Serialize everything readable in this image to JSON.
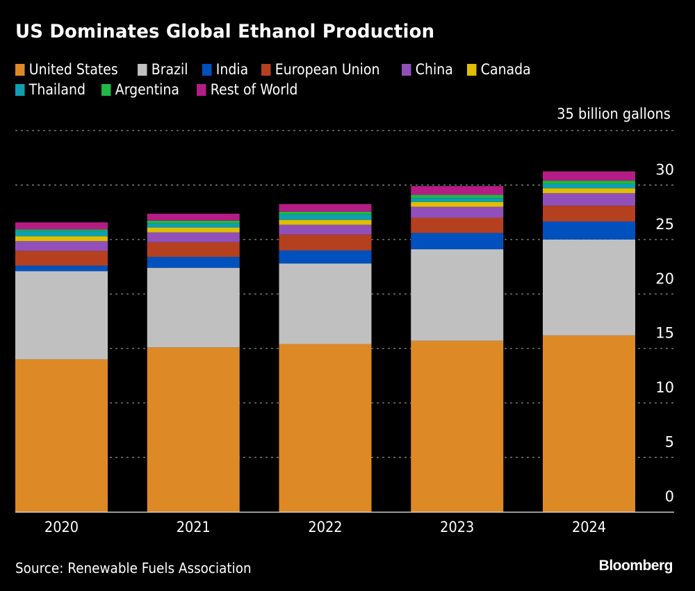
{
  "chart_data": {
    "type": "bar",
    "stacked": true,
    "title": "US Dominates Global Ethanol Production",
    "unit_label": "35 billion gallons",
    "xlabel": "",
    "ylabel": "billion gallons",
    "ylim": [
      0,
      35
    ],
    "yticks": [
      0,
      5,
      10,
      15,
      20,
      25,
      30
    ],
    "ytick_labels": [
      "0",
      "5",
      "10",
      "15",
      "20",
      "25",
      "30"
    ],
    "grid": true,
    "y_axis_side": "right",
    "legend_position": "top-left",
    "categories": [
      "2020",
      "2021",
      "2022",
      "2023",
      "2024"
    ],
    "series": [
      {
        "name": "United States",
        "color": "#dd8a26",
        "values": [
          14.0,
          15.1,
          15.4,
          15.7,
          16.2
        ]
      },
      {
        "name": "Brazil",
        "color": "#c0c0c0",
        "values": [
          8.1,
          7.3,
          7.4,
          8.4,
          8.8
        ]
      },
      {
        "name": "India",
        "color": "#0051bd",
        "values": [
          0.5,
          1.0,
          1.2,
          1.5,
          1.65
        ]
      },
      {
        "name": "European Union",
        "color": "#b5401f",
        "values": [
          1.35,
          1.35,
          1.45,
          1.4,
          1.45
        ]
      },
      {
        "name": "China",
        "color": "#9150b9",
        "values": [
          0.9,
          0.9,
          0.9,
          1.0,
          1.15
        ]
      },
      {
        "name": "Canada",
        "color": "#dfbf00",
        "values": [
          0.45,
          0.45,
          0.45,
          0.45,
          0.45
        ]
      },
      {
        "name": "Thailand",
        "color": "#0f9fb1",
        "values": [
          0.5,
          0.38,
          0.5,
          0.35,
          0.4
        ]
      },
      {
        "name": "Argentina",
        "color": "#1fb944",
        "values": [
          0.13,
          0.25,
          0.25,
          0.3,
          0.3
        ]
      },
      {
        "name": "Rest of World",
        "color": "#b51c86",
        "values": [
          0.64,
          0.64,
          0.7,
          0.8,
          0.85
        ]
      }
    ]
  },
  "legend": {
    "rows": [
      [
        0,
        1,
        2,
        3,
        4,
        5
      ],
      [
        6,
        7,
        8
      ]
    ]
  },
  "footer": {
    "source": "Source: Renewable Fuels Association",
    "brand": "Bloomberg"
  }
}
